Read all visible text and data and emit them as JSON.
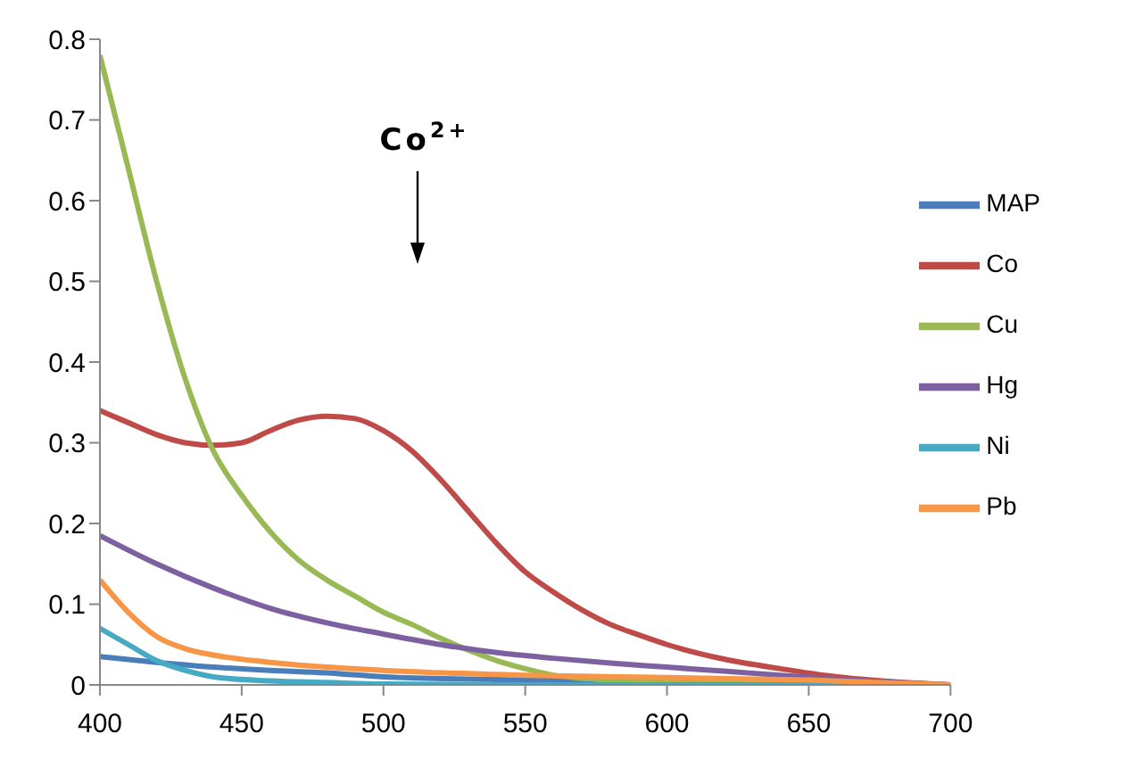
{
  "chart_data": {
    "type": "line",
    "xlim": [
      400,
      700
    ],
    "xticks": [
      400,
      450,
      500,
      550,
      600,
      650,
      700
    ],
    "ylim": [
      0,
      0.8
    ],
    "yticks": [
      0,
      0.1,
      0.2,
      0.3,
      0.4,
      0.5,
      0.6,
      0.7,
      0.8
    ],
    "grid": false,
    "legend": "right",
    "marker": "none",
    "line_style": "solid",
    "annotations": [
      "Co$^{2+}$"
    ],
    "series": [
      {
        "name": "MAP",
        "color": "#4a7ebb",
        "x": [
          400,
          420,
          440,
          460,
          480,
          500,
          550,
          600,
          700
        ],
        "values": [
          0.035,
          0.028,
          0.022,
          0.018,
          0.015,
          0.01,
          0.006,
          0.003,
          0
        ]
      },
      {
        "name": "Co",
        "color": "#be4b48",
        "x": [
          400,
          410,
          420,
          430,
          440,
          450,
          460,
          470,
          480,
          490,
          500,
          510,
          520,
          530,
          540,
          550,
          560,
          570,
          580,
          590,
          600,
          620,
          640,
          660,
          680,
          700
        ],
        "values": [
          0.34,
          0.325,
          0.31,
          0.3,
          0.297,
          0.3,
          0.315,
          0.328,
          0.333,
          0.33,
          0.315,
          0.29,
          0.255,
          0.215,
          0.175,
          0.14,
          0.115,
          0.093,
          0.075,
          0.062,
          0.05,
          0.032,
          0.02,
          0.01,
          0.004,
          0
        ]
      },
      {
        "name": "Cu",
        "color": "#98b954",
        "x": [
          400,
          410,
          420,
          430,
          440,
          450,
          460,
          470,
          480,
          490,
          500,
          510,
          520,
          530,
          540,
          550,
          560,
          580,
          600,
          650,
          700
        ],
        "values": [
          0.78,
          0.64,
          0.5,
          0.38,
          0.29,
          0.235,
          0.19,
          0.155,
          0.13,
          0.11,
          0.09,
          0.075,
          0.058,
          0.043,
          0.03,
          0.02,
          0.012,
          0.006,
          0.004,
          0.002,
          0
        ]
      },
      {
        "name": "Hg",
        "color": "#7d60a0",
        "x": [
          400,
          420,
          440,
          460,
          480,
          500,
          520,
          540,
          560,
          580,
          600,
          620,
          640,
          660,
          680,
          700
        ],
        "values": [
          0.185,
          0.15,
          0.12,
          0.095,
          0.077,
          0.063,
          0.05,
          0.04,
          0.033,
          0.027,
          0.022,
          0.017,
          0.012,
          0.007,
          0.003,
          0
        ]
      },
      {
        "name": "Ni",
        "color": "#46aac5",
        "x": [
          400,
          410,
          420,
          430,
          440,
          460,
          480,
          500,
          550,
          600,
          700
        ],
        "values": [
          0.07,
          0.05,
          0.03,
          0.018,
          0.01,
          0.005,
          0.003,
          0.001,
          0,
          0,
          0
        ]
      },
      {
        "name": "Pb",
        "color": "#f79646",
        "x": [
          400,
          410,
          420,
          430,
          440,
          460,
          480,
          500,
          550,
          600,
          650,
          700
        ],
        "values": [
          0.13,
          0.09,
          0.06,
          0.045,
          0.037,
          0.028,
          0.022,
          0.018,
          0.012,
          0.009,
          0.006,
          0
        ]
      }
    ]
  }
}
